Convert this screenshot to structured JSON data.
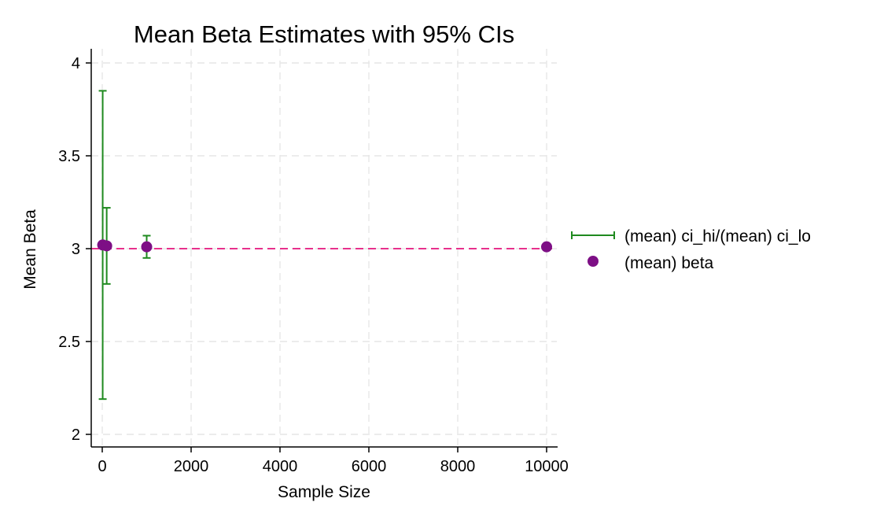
{
  "chart_data": {
    "type": "scatter",
    "title": "Mean Beta Estimates with 95% CIs",
    "xlabel": "Sample Size",
    "ylabel": "Mean Beta",
    "xlim": [
      0,
      10000
    ],
    "ylim": [
      2,
      4
    ],
    "x_ticks": [
      0,
      2000,
      4000,
      6000,
      8000,
      10000
    ],
    "y_ticks": [
      2,
      2.5,
      3,
      3.5,
      4
    ],
    "x_tick_labels": [
      "0",
      "2000",
      "4000",
      "6000",
      "8000",
      "10000"
    ],
    "y_tick_labels": [
      "2",
      "2.5",
      "3",
      "3.5",
      "4"
    ],
    "grid": true,
    "legend_position": "right",
    "reference_line": {
      "y": 3,
      "color": "#e8308c",
      "style": "dashed"
    },
    "series": [
      {
        "name": "(mean) ci_hi/(mean) ci_lo",
        "kind": "errorbar",
        "color": "#1f8a1f",
        "points": [
          {
            "x": 10,
            "lo": 2.19,
            "hi": 3.85
          },
          {
            "x": 100,
            "lo": 2.81,
            "hi": 3.22
          },
          {
            "x": 1000,
            "lo": 2.95,
            "hi": 3.07
          },
          {
            "x": 10000,
            "lo": 2.995,
            "hi": 3.025
          }
        ]
      },
      {
        "name": "(mean) beta",
        "kind": "point",
        "color": "#7d0f85",
        "points": [
          {
            "x": 10,
            "y": 3.02
          },
          {
            "x": 100,
            "y": 3.015
          },
          {
            "x": 1000,
            "y": 3.01
          },
          {
            "x": 10000,
            "y": 3.01
          }
        ]
      }
    ]
  }
}
